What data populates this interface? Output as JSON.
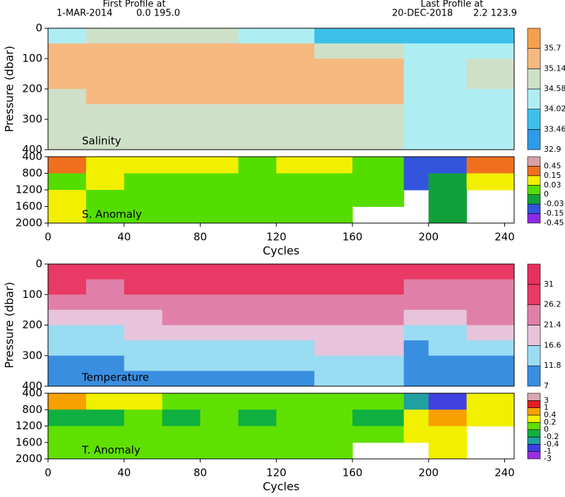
{
  "header": {
    "first_title": "First Profile at",
    "first_date": "1-MAR-2014",
    "first_pos": "0.0 195.0",
    "last_title": "Last Profile at",
    "last_date": "20-DEC-2018",
    "last_pos": "2.2 123.9"
  },
  "chart_data": [
    {
      "type": "heatmap",
      "label": "Salinity",
      "ylabel": "Pressure (dbar)",
      "invert_y": true,
      "x": [
        0,
        20,
        40,
        60,
        80,
        100,
        120,
        140,
        160,
        187,
        200,
        220,
        245
      ],
      "y": [
        0,
        50,
        100,
        150,
        200,
        250,
        300,
        350,
        400
      ],
      "values": [
        [
          34.4,
          34.7,
          34.9,
          34.9,
          34.7,
          34.5,
          34.1,
          33.9,
          33.8,
          33.9,
          33.8,
          33.9
        ],
        [
          35.3,
          35.4,
          35.4,
          35.3,
          35.3,
          35.2,
          35.2,
          35.0,
          34.9,
          34.3,
          34.4,
          34.5
        ],
        [
          35.4,
          35.5,
          35.5,
          35.4,
          35.4,
          35.4,
          35.3,
          35.3,
          35.2,
          34.4,
          34.5,
          34.7
        ],
        [
          35.3,
          35.4,
          35.4,
          35.4,
          35.3,
          35.3,
          35.3,
          35.2,
          35.2,
          34.4,
          34.4,
          34.6
        ],
        [
          35.1,
          35.2,
          35.3,
          35.2,
          35.2,
          35.2,
          35.2,
          35.2,
          35.2,
          34.4,
          34.4,
          34.5
        ],
        [
          34.7,
          34.9,
          35.0,
          35.0,
          35.0,
          35.0,
          35.0,
          35.1,
          35.1,
          34.4,
          34.4,
          34.4
        ],
        [
          34.6,
          34.6,
          34.6,
          34.6,
          34.7,
          34.7,
          34.7,
          34.8,
          34.8,
          34.4,
          34.4,
          34.4
        ],
        [
          34.6,
          34.6,
          34.6,
          34.6,
          34.6,
          34.6,
          34.6,
          34.6,
          34.6,
          34.4,
          34.4,
          34.4
        ]
      ],
      "xlim": [
        0,
        245
      ],
      "ylim": [
        0,
        400
      ],
      "yticks": [
        0,
        100,
        200,
        300,
        400
      ],
      "colorbar": {
        "levels": [
          32.9,
          33.46,
          34.02,
          34.58,
          35.14,
          35.7
        ],
        "colors": [
          "#2f9be8",
          "#3cc0ea",
          "#aeeef2",
          "#cfe0c8",
          "#f6b980",
          "#f5a04e"
        ]
      }
    },
    {
      "type": "heatmap",
      "label": "S. Anomaly",
      "xlabel": "Cycles",
      "invert_y": true,
      "x": [
        0,
        20,
        40,
        60,
        80,
        100,
        120,
        140,
        160,
        187,
        200,
        220,
        245
      ],
      "y": [
        400,
        800,
        1200,
        1600,
        2000
      ],
      "values": [
        [
          0.2,
          0.1,
          0.05,
          0.1,
          0.05,
          0.02,
          0.05,
          0.04,
          0.02,
          -0.1,
          -0.05,
          0.2
        ],
        [
          0.02,
          0.04,
          0.01,
          0.02,
          0.01,
          0.01,
          0.02,
          0.01,
          0.01,
          -0.05,
          -0.02,
          0.1
        ],
        [
          0.04,
          0.01,
          0.02,
          0.01,
          0.02,
          0.02,
          0.01,
          0.01,
          0.01,
          null,
          -0.02,
          null
        ],
        [
          0.04,
          0.02,
          0.02,
          0.01,
          0.01,
          0.02,
          0.02,
          0.01,
          null,
          null,
          -0.02,
          null
        ]
      ],
      "xlim": [
        0,
        245
      ],
      "ylim": [
        400,
        2000
      ],
      "yticks": [
        400,
        800,
        1200,
        1600,
        2000
      ],
      "xticks": [
        0,
        40,
        80,
        120,
        160,
        200,
        240
      ],
      "colorbar": {
        "levels": [
          -0.45,
          -0.15,
          -0.03,
          0,
          0.03,
          0.15,
          0.45
        ],
        "colors": [
          "#8a2be2",
          "#3355dd",
          "#12a03c",
          "#55dd00",
          "#f2f000",
          "#f07020",
          "#d9a0a8"
        ]
      }
    },
    {
      "type": "heatmap",
      "label": "Temperature",
      "ylabel": "Pressure (dbar)",
      "invert_y": true,
      "x": [
        0,
        20,
        40,
        60,
        80,
        100,
        120,
        140,
        160,
        187,
        200,
        220,
        245
      ],
      "y": [
        0,
        50,
        100,
        150,
        200,
        250,
        300,
        350,
        400
      ],
      "values": [
        [
          28,
          28,
          28,
          28,
          28,
          28,
          28,
          28,
          28,
          28,
          28,
          28
        ],
        [
          27,
          26,
          27,
          27,
          27,
          27,
          27,
          27,
          27,
          26,
          26,
          26
        ],
        [
          25,
          24,
          24,
          24,
          25,
          25,
          25,
          25,
          25,
          23,
          24,
          24
        ],
        [
          19,
          20,
          21,
          22,
          22,
          23,
          23,
          23,
          23,
          20,
          21,
          22
        ],
        [
          14,
          16,
          17,
          17,
          18,
          19,
          19,
          20,
          20,
          15,
          16,
          17
        ],
        [
          12,
          13,
          13,
          14,
          15,
          15,
          16,
          17,
          17,
          11,
          12,
          13
        ],
        [
          11,
          11,
          12,
          12,
          12,
          13,
          13,
          14,
          14,
          10,
          10,
          11
        ],
        [
          10,
          10,
          10,
          11,
          11,
          11,
          11,
          12,
          12,
          9,
          9,
          10
        ]
      ],
      "xlim": [
        0,
        245
      ],
      "ylim": [
        0,
        400
      ],
      "yticks": [
        0,
        100,
        200,
        300,
        400
      ],
      "colorbar": {
        "levels": [
          7,
          11.8,
          16.6,
          21.4,
          26.2,
          31
        ],
        "colors": [
          "#3a8ee0",
          "#9adcf2",
          "#e8c4dc",
          "#e080a8",
          "#e83a64",
          "#e83060"
        ]
      }
    },
    {
      "type": "heatmap",
      "label": "T. Anomaly",
      "xlabel": "Cycles",
      "invert_y": true,
      "x": [
        0,
        20,
        40,
        60,
        80,
        100,
        120,
        140,
        160,
        187,
        200,
        220,
        245
      ],
      "y": [
        400,
        800,
        1200,
        1600,
        2000
      ],
      "values": [
        [
          0.5,
          0.3,
          0.2,
          0.1,
          0.1,
          0.1,
          0.1,
          0.1,
          0.1,
          -0.3,
          -0.5,
          0.3
        ],
        [
          -0.05,
          -0.1,
          0.05,
          -0.05,
          0.05,
          -0.05,
          0.1,
          0.05,
          -0.05,
          0.3,
          0.5,
          0.2
        ],
        [
          0.1,
          0.05,
          0.1,
          0.05,
          0.05,
          0.1,
          0.05,
          0.05,
          0.05,
          0.3,
          0.2,
          null
        ],
        [
          0.1,
          0.05,
          0.1,
          0.05,
          0.05,
          0.1,
          0.05,
          0.05,
          null,
          null,
          0.2,
          null
        ]
      ],
      "xlim": [
        0,
        245
      ],
      "ylim": [
        400,
        2000
      ],
      "yticks": [
        400,
        800,
        1200,
        1600,
        2000
      ],
      "xticks": [
        0,
        40,
        80,
        120,
        160,
        200,
        240
      ],
      "colorbar": {
        "levels": [
          -3,
          -1,
          -0.4,
          -0.2,
          0,
          0.2,
          0.4,
          1,
          3
        ],
        "colors": [
          "#9a30e0",
          "#4040e0",
          "#20a0a0",
          "#10b040",
          "#60e000",
          "#f0f000",
          "#f8a000",
          "#e02020",
          "#d8a8b0"
        ]
      }
    }
  ]
}
